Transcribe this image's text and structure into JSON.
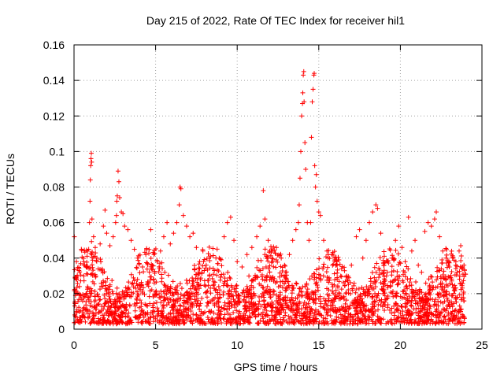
{
  "chart_data": {
    "type": "scatter",
    "title": "Day 215 of 2022, Rate Of TEC Index for receiver hil1",
    "xlabel": "GPS time / hours",
    "ylabel": "ROTI / TECUs",
    "xlim": [
      0,
      25
    ],
    "ylim": [
      0,
      0.16
    ],
    "x_ticks": [
      0,
      5,
      10,
      15,
      20,
      25
    ],
    "x_tick_labels": [
      "0",
      "5",
      "10",
      "15",
      "20",
      "25"
    ],
    "y_ticks": [
      0,
      0.02,
      0.04,
      0.06,
      0.08,
      0.1,
      0.12,
      0.14,
      0.16
    ],
    "y_tick_labels": [
      "0",
      "0.02",
      "0.04",
      "0.06",
      "0.08",
      "0.1",
      "0.12",
      "0.14",
      "0.16"
    ],
    "grid": true,
    "marker": "+",
    "color": "#ff0000",
    "series": [
      {
        "name": "ROTI",
        "points": [
          [
            0.02,
            0.052
          ],
          [
            0.15,
            0.038
          ],
          [
            0.3,
            0.033
          ],
          [
            0.45,
            0.045
          ],
          [
            0.6,
            0.03
          ],
          [
            0.75,
            0.035
          ],
          [
            0.9,
            0.045
          ],
          [
            0.95,
            0.06
          ],
          [
            0.98,
            0.072
          ],
          [
            1.0,
            0.084
          ],
          [
            1.02,
            0.092
          ],
          [
            1.04,
            0.096
          ],
          [
            1.06,
            0.099
          ],
          [
            1.08,
            0.094
          ],
          [
            1.1,
            0.062
          ],
          [
            1.2,
            0.052
          ],
          [
            1.3,
            0.046
          ],
          [
            1.4,
            0.04
          ],
          [
            1.6,
            0.048
          ],
          [
            1.8,
            0.058
          ],
          [
            1.9,
            0.067
          ],
          [
            2.0,
            0.054
          ],
          [
            2.2,
            0.047
          ],
          [
            2.4,
            0.052
          ],
          [
            2.55,
            0.06
          ],
          [
            2.6,
            0.064
          ],
          [
            2.62,
            0.072
          ],
          [
            2.65,
            0.075
          ],
          [
            2.7,
            0.089
          ],
          [
            2.75,
            0.083
          ],
          [
            2.8,
            0.074
          ],
          [
            2.9,
            0.066
          ],
          [
            3.0,
            0.065
          ],
          [
            3.1,
            0.058
          ],
          [
            3.3,
            0.056
          ],
          [
            3.5,
            0.05
          ],
          [
            3.7,
            0.045
          ],
          [
            3.9,
            0.04
          ],
          [
            4.0,
            0.037
          ],
          [
            4.2,
            0.035
          ],
          [
            4.4,
            0.042
          ],
          [
            4.7,
            0.056
          ],
          [
            4.9,
            0.042
          ],
          [
            5.1,
            0.038
          ],
          [
            5.3,
            0.044
          ],
          [
            5.5,
            0.052
          ],
          [
            5.7,
            0.06
          ],
          [
            5.9,
            0.048
          ],
          [
            6.1,
            0.054
          ],
          [
            6.3,
            0.06
          ],
          [
            6.45,
            0.07
          ],
          [
            6.5,
            0.08
          ],
          [
            6.55,
            0.079
          ],
          [
            6.7,
            0.064
          ],
          [
            6.9,
            0.058
          ],
          [
            7.1,
            0.052
          ],
          [
            7.3,
            0.054
          ],
          [
            7.5,
            0.046
          ],
          [
            7.7,
            0.038
          ],
          [
            7.9,
            0.044
          ],
          [
            8.1,
            0.036
          ],
          [
            8.3,
            0.03
          ],
          [
            8.6,
            0.033
          ],
          [
            8.9,
            0.04
          ],
          [
            9.2,
            0.052
          ],
          [
            9.4,
            0.06
          ],
          [
            9.6,
            0.063
          ],
          [
            9.8,
            0.05
          ],
          [
            10.0,
            0.038
          ],
          [
            10.3,
            0.035
          ],
          [
            10.6,
            0.042
          ],
          [
            10.9,
            0.046
          ],
          [
            11.2,
            0.052
          ],
          [
            11.4,
            0.058
          ],
          [
            11.6,
            0.078
          ],
          [
            11.7,
            0.062
          ],
          [
            11.9,
            0.05
          ],
          [
            12.1,
            0.044
          ],
          [
            12.4,
            0.046
          ],
          [
            12.7,
            0.04
          ],
          [
            12.9,
            0.036
          ],
          [
            13.2,
            0.042
          ],
          [
            13.4,
            0.05
          ],
          [
            13.6,
            0.056
          ],
          [
            13.75,
            0.06
          ],
          [
            13.8,
            0.07
          ],
          [
            13.85,
            0.085
          ],
          [
            13.9,
            0.1
          ],
          [
            13.95,
            0.12
          ],
          [
            14.0,
            0.127
          ],
          [
            14.02,
            0.133
          ],
          [
            14.05,
            0.143
          ],
          [
            14.08,
            0.145
          ],
          [
            14.1,
            0.128
          ],
          [
            14.15,
            0.105
          ],
          [
            14.2,
            0.09
          ],
          [
            14.3,
            0.06
          ],
          [
            14.4,
            0.05
          ],
          [
            14.5,
            0.06
          ],
          [
            14.55,
            0.108
          ],
          [
            14.6,
            0.128
          ],
          [
            14.65,
            0.135
          ],
          [
            14.7,
            0.143
          ],
          [
            14.72,
            0.144
          ],
          [
            14.75,
            0.092
          ],
          [
            14.8,
            0.08
          ],
          [
            14.85,
            0.087
          ],
          [
            14.9,
            0.072
          ],
          [
            15.0,
            0.066
          ],
          [
            15.1,
            0.064
          ],
          [
            15.3,
            0.05
          ],
          [
            15.5,
            0.044
          ],
          [
            15.8,
            0.042
          ],
          [
            16.1,
            0.038
          ],
          [
            16.4,
            0.034
          ],
          [
            16.7,
            0.03
          ],
          [
            17.0,
            0.036
          ],
          [
            17.3,
            0.052
          ],
          [
            17.5,
            0.056
          ],
          [
            17.7,
            0.04
          ],
          [
            17.9,
            0.05
          ],
          [
            18.1,
            0.06
          ],
          [
            18.3,
            0.066
          ],
          [
            18.5,
            0.07
          ],
          [
            18.6,
            0.068
          ],
          [
            18.8,
            0.054
          ],
          [
            19.0,
            0.036
          ],
          [
            19.2,
            0.032
          ],
          [
            19.5,
            0.04
          ],
          [
            19.7,
            0.05
          ],
          [
            19.9,
            0.058
          ],
          [
            20.1,
            0.046
          ],
          [
            20.3,
            0.038
          ],
          [
            20.5,
            0.063
          ],
          [
            20.7,
            0.044
          ],
          [
            20.9,
            0.05
          ],
          [
            21.1,
            0.036
          ],
          [
            21.3,
            0.032
          ],
          [
            21.5,
            0.055
          ],
          [
            21.7,
            0.06
          ],
          [
            21.9,
            0.058
          ],
          [
            22.1,
            0.062
          ],
          [
            22.2,
            0.066
          ],
          [
            22.4,
            0.052
          ],
          [
            22.6,
            0.044
          ],
          [
            22.8,
            0.04
          ],
          [
            23.0,
            0.035
          ],
          [
            23.2,
            0.04
          ],
          [
            23.4,
            0.038
          ],
          [
            23.6,
            0.044
          ],
          [
            23.7,
            0.047
          ],
          [
            23.9,
            0.036
          ]
        ]
      }
    ],
    "dense_band": {
      "description_hours": [
        0,
        24
      ],
      "typical_low": 0.008,
      "typical_high": 0.03,
      "floor": 0.003
    }
  }
}
